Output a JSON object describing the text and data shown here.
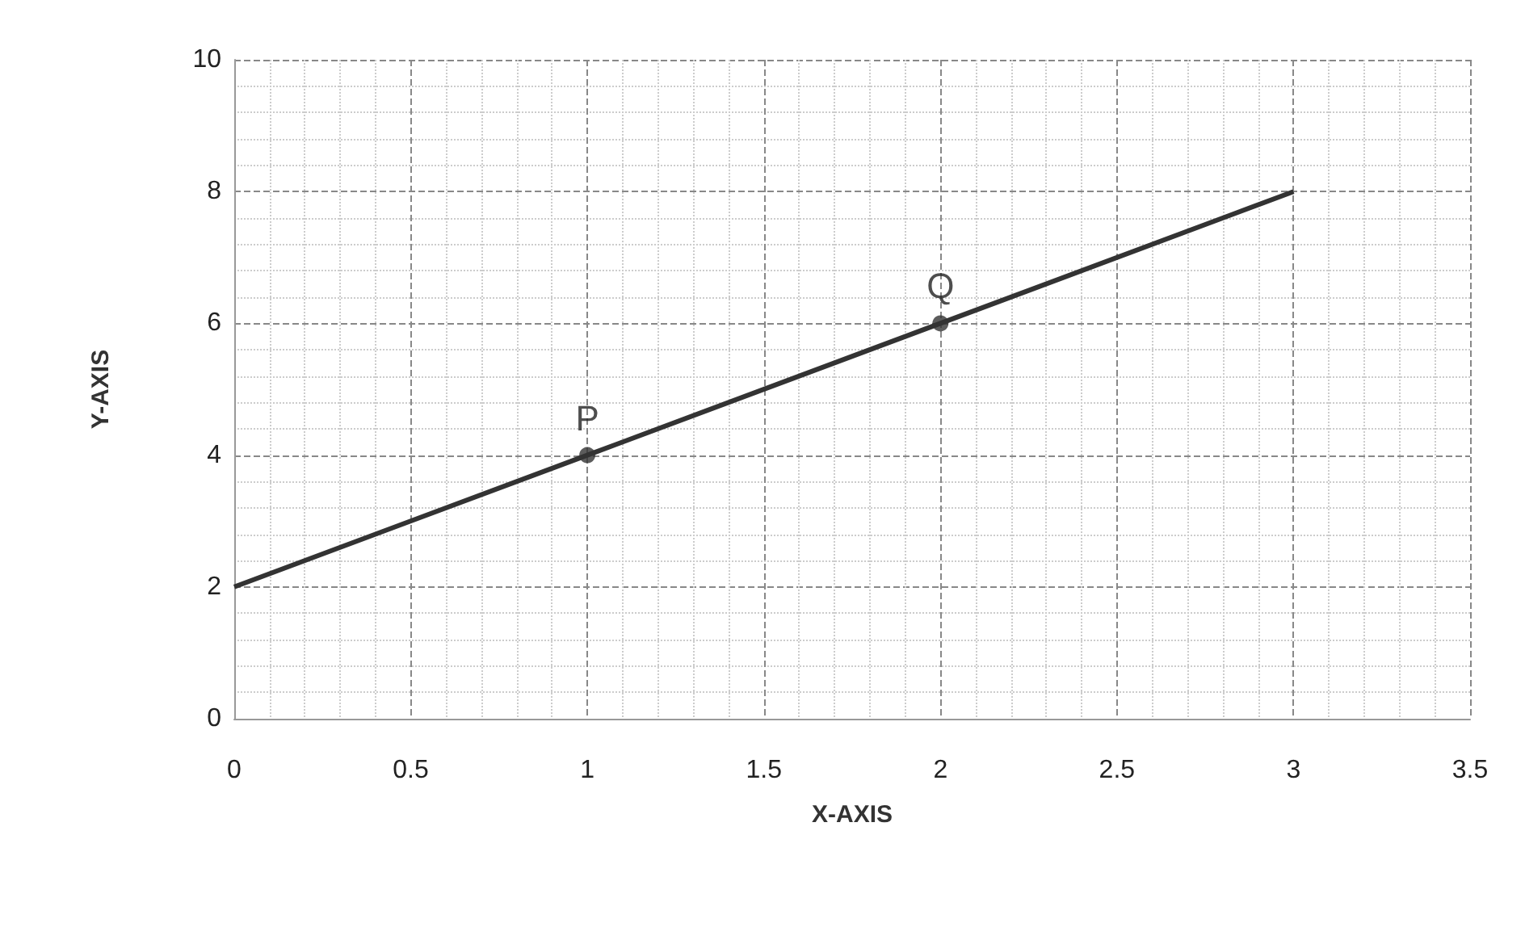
{
  "chart_data": {
    "type": "line",
    "xlabel": "X-AXIS",
    "ylabel": "Y-AXIS",
    "x": [
      0,
      1,
      2,
      3
    ],
    "series": [
      {
        "type": "line",
        "color": "#333333",
        "values": [
          2,
          4,
          6,
          8
        ],
        "marker": "none"
      },
      {
        "type": "scatter",
        "color": "#333333",
        "x": [
          1,
          2
        ],
        "values": [
          4,
          6
        ],
        "marker": "circle"
      }
    ],
    "annotations": [
      {
        "text": "P",
        "x": 1,
        "y": 4
      },
      {
        "text": "Q",
        "x": 2,
        "y": 6
      }
    ],
    "xlim": [
      0,
      3.5
    ],
    "xticks": [
      0,
      0.5,
      1,
      1.5,
      2,
      2.5,
      3,
      3.5
    ],
    "ylim": [
      0,
      10
    ],
    "yticks": [
      0,
      2,
      4,
      6,
      8,
      10
    ],
    "grid": true
  }
}
